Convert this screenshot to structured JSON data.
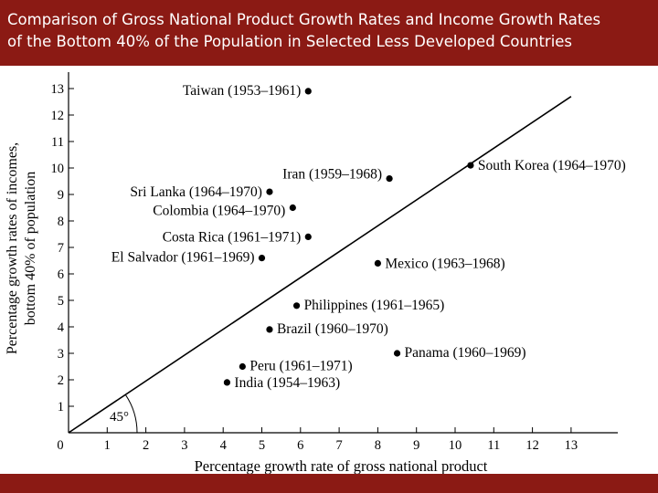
{
  "slide": {
    "title_line1": "Comparison of Gross National Product Growth Rates and Income Growth Rates",
    "title_line2": "of the Bottom 40% of the Population in Selected Less Developed Countries"
  },
  "chart_data": {
    "type": "scatter",
    "xlabel": "Percentage growth rate of gross national product",
    "ylabel_line1": "Percentage growth rates of incomes,",
    "ylabel_line2": "bottom 40% of population",
    "xlim": [
      0,
      14
    ],
    "ylim": [
      0,
      14
    ],
    "x_ticks": [
      0,
      1,
      2,
      3,
      4,
      5,
      6,
      7,
      8,
      9,
      10,
      11,
      12,
      13
    ],
    "y_ticks": [
      1,
      2,
      3,
      4,
      5,
      6,
      7,
      8,
      9,
      10,
      11,
      12,
      13
    ],
    "grid": false,
    "reference_line": {
      "label": "45°",
      "from": [
        0,
        0
      ],
      "to": [
        13.0,
        12.7
      ]
    },
    "points": [
      {
        "label": "Taiwan (1953–1961)",
        "x": 6.2,
        "y": 12.9
      },
      {
        "label": "Iran (1959–1968)",
        "x": 8.3,
        "y": 9.6
      },
      {
        "label": "South Korea (1964–1970)",
        "x": 10.4,
        "y": 10.1
      },
      {
        "label": "Sri Lanka (1964–1970)",
        "x": 5.2,
        "y": 9.1
      },
      {
        "label": "Colombia (1964–1970)",
        "x": 5.8,
        "y": 8.5
      },
      {
        "label": "Costa Rica (1961–1971)",
        "x": 6.2,
        "y": 7.4
      },
      {
        "label": "El Salvador (1961–1969)",
        "x": 5.0,
        "y": 6.6
      },
      {
        "label": "Mexico (1963–1968)",
        "x": 8.0,
        "y": 6.4
      },
      {
        "label": "Philippines (1961–1965)",
        "x": 5.9,
        "y": 4.8
      },
      {
        "label": "Brazil (1960–1970)",
        "x": 5.2,
        "y": 3.9
      },
      {
        "label": "Panama (1960–1969)",
        "x": 8.5,
        "y": 3.0
      },
      {
        "label": "Peru (1961–1971)",
        "x": 4.5,
        "y": 2.5
      },
      {
        "label": "India (1954–1963)",
        "x": 4.1,
        "y": 1.9
      }
    ]
  },
  "colors": {
    "header": "#8b1a14",
    "ink": "#000000"
  }
}
